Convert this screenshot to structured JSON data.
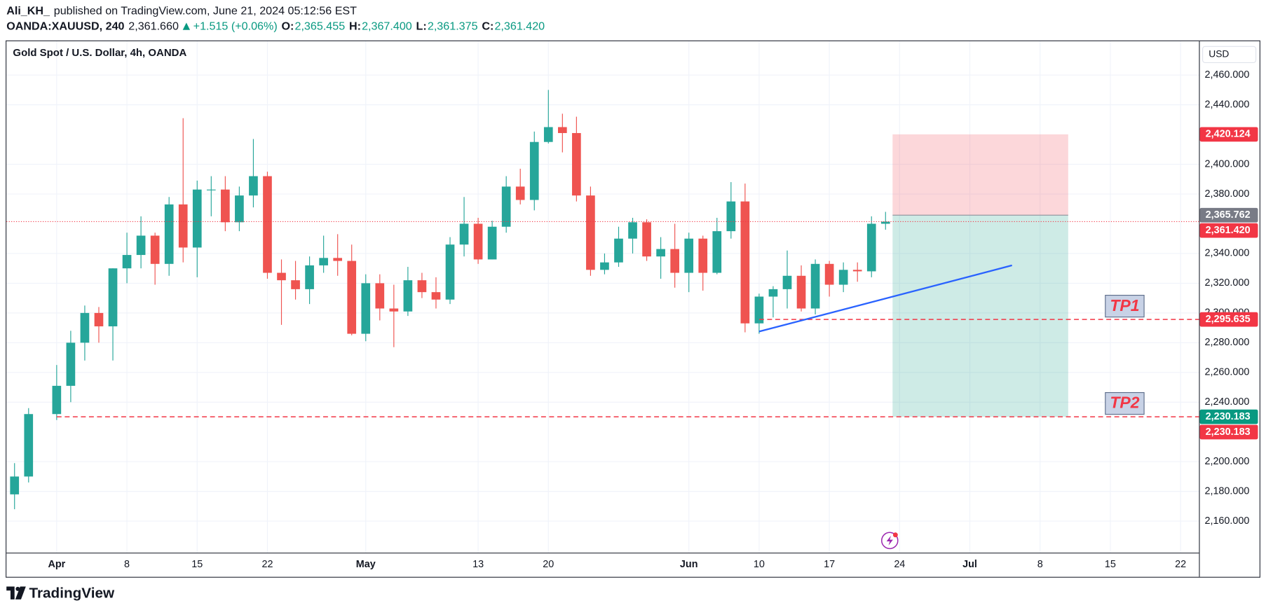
{
  "header": {
    "author": "Ali_KH_",
    "published": "published on TradingView.com, June 21, 2024 05:12:56 EST",
    "symbol": "OANDA:XAUUSD, 240",
    "last": "2,361.660",
    "change": "+1.515 (+0.06%)",
    "value_color": "#089981",
    "ohlc": [
      {
        "key": "O:",
        "value": "2,365.455"
      },
      {
        "key": "H:",
        "value": "2,367.400"
      },
      {
        "key": "L:",
        "value": "2,361.375"
      },
      {
        "key": "C:",
        "value": "2,361.420"
      }
    ]
  },
  "footer": {
    "brand": "TradingView"
  },
  "chart_data": {
    "type": "candlestick",
    "title": "Gold Spot / U.S. Dollar, 4h, OANDA",
    "currency": "USD",
    "up_color": "#26a69a",
    "down_color": "#ef5350",
    "grid": true,
    "x": [
      "Mar 27",
      "Mar 28",
      "Apr 1",
      "Apr 2",
      "Apr 3",
      "Apr 4",
      "Apr 5",
      "Apr 8",
      "Apr 9",
      "Apr 10",
      "Apr 11",
      "Apr 12",
      "Apr 15",
      "Apr 16",
      "Apr 17",
      "Apr 18",
      "Apr 19",
      "Apr 22",
      "Apr 23",
      "Apr 24",
      "Apr 25",
      "Apr 26",
      "Apr 29",
      "Apr 30",
      "May 1",
      "May 2",
      "May 3",
      "May 6",
      "May 7",
      "May 8",
      "May 9",
      "May 10",
      "May 13",
      "May 14",
      "May 15",
      "May 16",
      "May 17",
      "May 20",
      "May 21",
      "May 22",
      "May 23",
      "May 24",
      "May 27",
      "May 28",
      "May 29",
      "May 30",
      "May 31",
      "Jun 3",
      "Jun 4",
      "Jun 5",
      "Jun 6",
      "Jun 7",
      "Jun 10",
      "Jun 11",
      "Jun 12",
      "Jun 13",
      "Jun 14",
      "Jun 17",
      "Jun 18",
      "Jun 19",
      "Jun 20",
      "Jun 21"
    ],
    "open": [
      2178,
      2190,
      2232,
      2251,
      2280,
      2300,
      2291,
      2330,
      2339,
      2352,
      2333,
      2373,
      2344,
      2383,
      2383,
      2361,
      2379,
      2392,
      2327,
      2322,
      2316,
      2332,
      2337,
      2335,
      2286,
      2320,
      2303,
      2301,
      2322,
      2314,
      2309,
      2346,
      2360,
      2336,
      2358,
      2385,
      2376,
      2415,
      2425,
      2421,
      2379,
      2329,
      2334,
      2350,
      2361,
      2338,
      2343,
      2327,
      2350,
      2327,
      2355,
      2375,
      2293,
      2311,
      2316,
      2325,
      2303,
      2333,
      2319,
      2329,
      2328,
      2360
    ],
    "high": [
      2199,
      2236,
      2265,
      2288,
      2305,
      2304,
      2330,
      2354,
      2365,
      2354,
      2378,
      2431,
      2389,
      2392,
      2392,
      2385,
      2417,
      2395,
      2336,
      2335,
      2338,
      2352,
      2353,
      2346,
      2326,
      2326,
      2319,
      2331,
      2327,
      2324,
      2351,
      2378,
      2364,
      2362,
      2392,
      2397,
      2422,
      2450,
      2434,
      2432,
      2385,
      2340,
      2358,
      2364,
      2363,
      2351,
      2360,
      2354,
      2352,
      2364,
      2388,
      2387,
      2313,
      2318,
      2342,
      2332,
      2336,
      2335,
      2334,
      2334,
      2365,
      2368
    ],
    "low": [
      2168,
      2186,
      2228,
      2240,
      2268,
      2280,
      2268,
      2320,
      2330,
      2319,
      2325,
      2334,
      2324,
      2365,
      2355,
      2355,
      2371,
      2323,
      2292,
      2309,
      2306,
      2327,
      2325,
      2285,
      2281,
      2295,
      2277,
      2298,
      2310,
      2303,
      2306,
      2338,
      2333,
      2336,
      2354,
      2373,
      2369,
      2414,
      2408,
      2375,
      2325,
      2326,
      2331,
      2340,
      2335,
      2323,
      2317,
      2314,
      2315,
      2326,
      2350,
      2287,
      2286,
      2297,
      2303,
      2301,
      2299,
      2311,
      2314,
      2321,
      2324,
      2356
    ],
    "close": [
      2190,
      2232,
      2251,
      2280,
      2300,
      2291,
      2330,
      2339,
      2352,
      2333,
      2373,
      2344,
      2383,
      2383,
      2361,
      2379,
      2392,
      2327,
      2322,
      2316,
      2332,
      2337,
      2335,
      2286,
      2320,
      2303,
      2301,
      2322,
      2314,
      2309,
      2346,
      2360,
      2336,
      2358,
      2385,
      2376,
      2415,
      2425,
      2421,
      2379,
      2329,
      2334,
      2350,
      2361,
      2338,
      2343,
      2327,
      2350,
      2327,
      2355,
      2375,
      2293,
      2311,
      2316,
      2325,
      2303,
      2333,
      2319,
      2329,
      2328,
      2360,
      2361.42
    ],
    "ylim": [
      2138.8,
      2479.5
    ],
    "yticks": [
      {
        "value": 2160,
        "label": "2,160.000"
      },
      {
        "value": 2180,
        "label": "2,180.000"
      },
      {
        "value": 2200,
        "label": "2,200.000"
      },
      {
        "value": 2240,
        "label": "2,240.000"
      },
      {
        "value": 2260,
        "label": "2,260.000"
      },
      {
        "value": 2280,
        "label": "2,280.000"
      },
      {
        "value": 2300,
        "label": "2,300.000"
      },
      {
        "value": 2320,
        "label": "2,320.000"
      },
      {
        "value": 2340,
        "label": "2,340.000"
      },
      {
        "value": 2380,
        "label": "2,380.000"
      },
      {
        "value": 2400,
        "label": "2,400.000"
      },
      {
        "value": 2440,
        "label": "2,440.000"
      },
      {
        "value": 2460,
        "label": "2,460.000"
      }
    ],
    "xticks": [
      {
        "value": "Apr 1",
        "label": "Apr"
      },
      {
        "value": "Apr 8",
        "label": "8"
      },
      {
        "value": "Apr 15",
        "label": "15"
      },
      {
        "value": "Apr 22",
        "label": "22"
      },
      {
        "value": "May 1",
        "label": "May"
      },
      {
        "value": "May 13",
        "label": "13"
      },
      {
        "value": "May 20",
        "label": "20"
      },
      {
        "value": "Jun 3",
        "label": "Jun"
      },
      {
        "value": "Jun 10",
        "label": "10"
      },
      {
        "value": "Jun 17",
        "label": "17"
      },
      {
        "value": "Jun 24",
        "label": "24"
      },
      {
        "value": "Jul 1",
        "label": "Jul"
      },
      {
        "value": "Jul 8",
        "label": "8"
      },
      {
        "value": "Jul 15",
        "label": "15"
      },
      {
        "value": "Jul 22",
        "label": "22"
      }
    ],
    "position": {
      "entry": 2365.762,
      "stop": 2420.124,
      "target": 2230.183,
      "x": [
        "Jun 24",
        "Jul 10"
      ]
    },
    "trendline": {
      "x": [
        "Jun 10",
        "Jul 4"
      ],
      "y": [
        2287.5,
        2332
      ],
      "color": "#2962ff"
    },
    "levels": [
      {
        "value": 2295.635,
        "from": "Jun 10",
        "label": "TP1",
        "color": "#f23645"
      },
      {
        "value": 2230.183,
        "from": "Apr 1",
        "label": "TP2",
        "color": "#f23645"
      }
    ],
    "price_labels": [
      {
        "value": 2420.124,
        "label": "2,420.124",
        "color": "#f23645"
      },
      {
        "value": 2365.762,
        "label": "2,365.762",
        "color": "#787b86"
      },
      {
        "value": 2361.42,
        "label": "2,361.420",
        "color": "#f23645",
        "line": "dotted"
      },
      {
        "value": 2295.635,
        "label": "2,295.635",
        "color": "#f23645"
      },
      {
        "value": 2230.183,
        "label": "2,230.183",
        "color": "#089981"
      },
      {
        "value": 2230.183,
        "label": "2,230.183",
        "color": "#f23645"
      }
    ]
  }
}
